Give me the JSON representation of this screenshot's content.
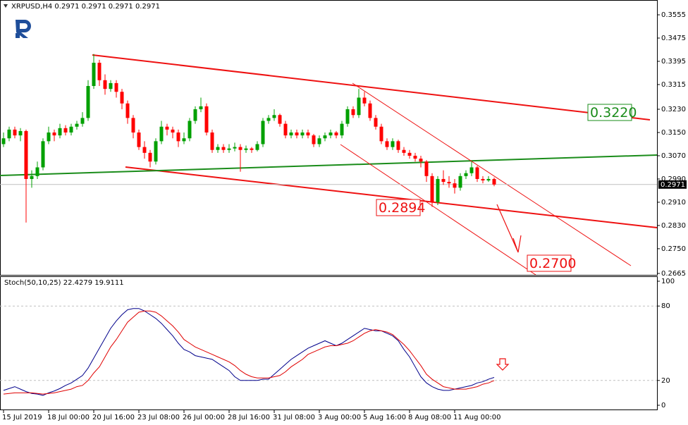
{
  "chart_data": [
    {
      "type": "candlestick",
      "title": "XRPUSD,H4  0.2971 0.2971 0.2971 0.2971",
      "up_color": "#00a000",
      "down_color": "#ff0000",
      "categories": [
        "15 Jul 2019",
        null,
        null,
        null,
        null,
        null,
        null,
        null,
        "18 Jul 00:00",
        null,
        null,
        null,
        null,
        null,
        null,
        null,
        "20 Jul 16:00",
        null,
        null,
        null,
        null,
        null,
        null,
        null,
        "23 Jul 08:00",
        null,
        null,
        null,
        null,
        null,
        null,
        null,
        "26 Jul 00:00",
        null,
        null,
        null,
        null,
        null,
        null,
        null,
        "28 Jul 16:00",
        null,
        null,
        null,
        null,
        null,
        null,
        null,
        "31 Jul 08:00",
        null,
        null,
        null,
        null,
        null,
        null,
        null,
        "3 Aug 00:00",
        null,
        null,
        null,
        null,
        null,
        null,
        null,
        "5 Aug 16:00",
        null,
        null,
        null,
        null,
        null,
        null,
        null,
        "8 Aug 08:00",
        null,
        null,
        null,
        null,
        null,
        null,
        null,
        "11 Aug 00:00",
        null,
        null,
        null,
        null,
        null,
        null,
        null
      ],
      "ohlc": [
        [
          0.311,
          0.315,
          0.31,
          0.313
        ],
        [
          0.313,
          0.317,
          0.312,
          0.316
        ],
        [
          0.316,
          0.317,
          0.313,
          0.314
        ],
        [
          0.314,
          0.3165,
          0.312,
          0.3155
        ],
        [
          0.3155,
          0.316,
          0.284,
          0.299
        ],
        [
          0.299,
          0.302,
          0.296,
          0.3
        ],
        [
          0.3,
          0.305,
          0.299,
          0.303
        ],
        [
          0.303,
          0.313,
          0.302,
          0.312
        ],
        [
          0.312,
          0.317,
          0.311,
          0.315
        ],
        [
          0.315,
          0.316,
          0.312,
          0.314
        ],
        [
          0.314,
          0.318,
          0.313,
          0.3165
        ],
        [
          0.3165,
          0.3175,
          0.314,
          0.315
        ],
        [
          0.315,
          0.318,
          0.314,
          0.317
        ],
        [
          0.317,
          0.319,
          0.316,
          0.318
        ],
        [
          0.318,
          0.322,
          0.317,
          0.32
        ],
        [
          0.32,
          0.333,
          0.319,
          0.331
        ],
        [
          0.331,
          0.342,
          0.33,
          0.339
        ],
        [
          0.339,
          0.34,
          0.331,
          0.333
        ],
        [
          0.333,
          0.335,
          0.328,
          0.33
        ],
        [
          0.33,
          0.333,
          0.329,
          0.332
        ],
        [
          0.332,
          0.333,
          0.327,
          0.329
        ],
        [
          0.329,
          0.33,
          0.323,
          0.325
        ],
        [
          0.325,
          0.326,
          0.318,
          0.32
        ],
        [
          0.32,
          0.321,
          0.313,
          0.315
        ],
        [
          0.315,
          0.316,
          0.309,
          0.31
        ],
        [
          0.31,
          0.312,
          0.306,
          0.308
        ],
        [
          0.308,
          0.309,
          0.303,
          0.305
        ],
        [
          0.305,
          0.313,
          0.304,
          0.312
        ],
        [
          0.312,
          0.319,
          0.311,
          0.317
        ],
        [
          0.317,
          0.318,
          0.314,
          0.316
        ],
        [
          0.316,
          0.317,
          0.313,
          0.315
        ],
        [
          0.315,
          0.316,
          0.31,
          0.312
        ],
        [
          0.312,
          0.315,
          0.311,
          0.313
        ],
        [
          0.313,
          0.32,
          0.312,
          0.319
        ],
        [
          0.319,
          0.324,
          0.318,
          0.323
        ],
        [
          0.323,
          0.327,
          0.322,
          0.324
        ],
        [
          0.324,
          0.325,
          0.314,
          0.315
        ],
        [
          0.315,
          0.316,
          0.308,
          0.309
        ],
        [
          0.309,
          0.311,
          0.308,
          0.31
        ],
        [
          0.31,
          0.311,
          0.308,
          0.309
        ],
        [
          0.309,
          0.311,
          0.308,
          0.3095
        ],
        [
          0.3095,
          0.3115,
          0.3085,
          0.31
        ],
        [
          0.31,
          0.311,
          0.3015,
          0.309
        ],
        [
          0.309,
          0.3105,
          0.308,
          0.3095
        ],
        [
          0.3095,
          0.31,
          0.308,
          0.309
        ],
        [
          0.309,
          0.312,
          0.3085,
          0.311
        ],
        [
          0.311,
          0.32,
          0.31,
          0.319
        ],
        [
          0.319,
          0.321,
          0.318,
          0.32
        ],
        [
          0.32,
          0.323,
          0.319,
          0.321
        ],
        [
          0.321,
          0.3215,
          0.317,
          0.318
        ],
        [
          0.318,
          0.319,
          0.313,
          0.314
        ],
        [
          0.314,
          0.316,
          0.313,
          0.315
        ],
        [
          0.315,
          0.316,
          0.313,
          0.314
        ],
        [
          0.314,
          0.316,
          0.313,
          0.315
        ],
        [
          0.315,
          0.316,
          0.313,
          0.314
        ],
        [
          0.314,
          0.3145,
          0.31,
          0.311
        ],
        [
          0.311,
          0.314,
          0.31,
          0.313
        ],
        [
          0.313,
          0.315,
          0.312,
          0.314
        ],
        [
          0.314,
          0.316,
          0.313,
          0.315
        ],
        [
          0.315,
          0.3155,
          0.313,
          0.314
        ],
        [
          0.314,
          0.319,
          0.313,
          0.318
        ],
        [
          0.318,
          0.324,
          0.317,
          0.323
        ],
        [
          0.323,
          0.324,
          0.32,
          0.321
        ],
        [
          0.321,
          0.33,
          0.32,
          0.327
        ],
        [
          0.327,
          0.329,
          0.324,
          0.325
        ],
        [
          0.325,
          0.326,
          0.319,
          0.32
        ],
        [
          0.32,
          0.321,
          0.316,
          0.317
        ],
        [
          0.317,
          0.318,
          0.311,
          0.312
        ],
        [
          0.312,
          0.313,
          0.309,
          0.31
        ],
        [
          0.31,
          0.313,
          0.309,
          0.312
        ],
        [
          0.312,
          0.3125,
          0.308,
          0.309
        ],
        [
          0.309,
          0.31,
          0.307,
          0.308
        ],
        [
          0.308,
          0.309,
          0.306,
          0.307
        ],
        [
          0.307,
          0.308,
          0.305,
          0.306
        ],
        [
          0.306,
          0.307,
          0.303,
          0.305
        ],
        [
          0.305,
          0.3055,
          0.298,
          0.3
        ],
        [
          0.3,
          0.301,
          0.2894,
          0.291
        ],
        [
          0.291,
          0.3,
          0.29,
          0.299
        ],
        [
          0.299,
          0.302,
          0.297,
          0.298
        ],
        [
          0.298,
          0.3,
          0.296,
          0.2975
        ],
        [
          0.2975,
          0.299,
          0.294,
          0.296
        ],
        [
          0.296,
          0.301,
          0.295,
          0.3
        ],
        [
          0.3,
          0.302,
          0.299,
          0.301
        ],
        [
          0.301,
          0.305,
          0.3,
          0.303
        ],
        [
          0.303,
          0.3035,
          0.298,
          0.299
        ],
        [
          0.299,
          0.3,
          0.2975,
          0.2985
        ],
        [
          0.2985,
          0.3,
          0.298,
          0.299
        ],
        [
          0.299,
          0.2995,
          0.2965,
          0.2971
        ]
      ],
      "ylim": [
        0.266,
        0.3606
      ],
      "yticks": [
        0.3555,
        0.3475,
        0.3395,
        0.3315,
        {
          "value": 0.323,
          "label": "0.3230"
        },
        {
          "value": 0.315,
          "label": "0.3150"
        },
        {
          "value": 0.307,
          "label": "0.3070"
        },
        {
          "value": 0.299,
          "label": "0.2990"
        },
        {
          "value": 0.291,
          "label": "0.2910"
        },
        {
          "value": 0.283,
          "label": "0.2830"
        },
        {
          "value": 0.275,
          "label": "0.2750"
        },
        0.2665
      ],
      "last_price": 0.2971,
      "annotations": [
        {
          "value": 0.322,
          "label": "0.3220",
          "color": "#1a8c1a"
        },
        {
          "value": 0.2894,
          "label": "0.2894",
          "color": "#ee1111"
        },
        {
          "value": 0.27,
          "label": "0.2700",
          "color": "#ee1111"
        }
      ]
    },
    {
      "type": "line",
      "title": "Stoch(50,10,25) 22.4279 19.9111",
      "series": [
        {
          "color": "#00008b",
          "values": [
            12,
            13.5,
            15,
            13,
            11,
            9.5,
            9,
            8,
            10,
            11.5,
            13.5,
            16,
            18,
            21,
            24,
            30,
            38,
            46,
            54,
            62,
            68,
            73,
            77,
            78,
            78,
            76,
            73,
            70,
            66,
            61,
            56,
            50,
            45,
            43,
            40,
            39,
            38,
            37,
            34,
            31,
            28,
            23,
            20,
            20,
            20,
            20,
            21,
            21,
            25,
            29,
            33,
            37,
            40,
            43,
            46,
            48,
            50,
            52,
            50,
            48,
            50,
            53,
            56,
            59,
            62,
            61,
            60,
            60,
            58,
            56,
            52,
            45,
            39,
            31,
            23,
            18,
            15,
            13,
            12,
            12,
            13,
            14,
            15,
            16,
            18,
            19,
            21,
            22.4279
          ]
        },
        {
          "color": "#e00000",
          "values": [
            9,
            9.5,
            10,
            10,
            10,
            10,
            9.5,
            9,
            9.5,
            10,
            11,
            12,
            13,
            15,
            16,
            20,
            26,
            31,
            39,
            47,
            53,
            60,
            67,
            71,
            75,
            76,
            76,
            75,
            72,
            68,
            64,
            59,
            53,
            50,
            47,
            45,
            43,
            41,
            39,
            37,
            35,
            32,
            28,
            25,
            23,
            22,
            22,
            22,
            23,
            24,
            27,
            31,
            34,
            37,
            41,
            43,
            45,
            47,
            48,
            48,
            49,
            50,
            52,
            55,
            58,
            60,
            61,
            60,
            59,
            57,
            53,
            49,
            44,
            38,
            32,
            25,
            21,
            18,
            15,
            14,
            13,
            13,
            13,
            14,
            15,
            17,
            18,
            19.9111
          ]
        }
      ],
      "ylim": [
        0,
        100
      ],
      "yticks": [
        100,
        80,
        20,
        0
      ]
    }
  ]
}
